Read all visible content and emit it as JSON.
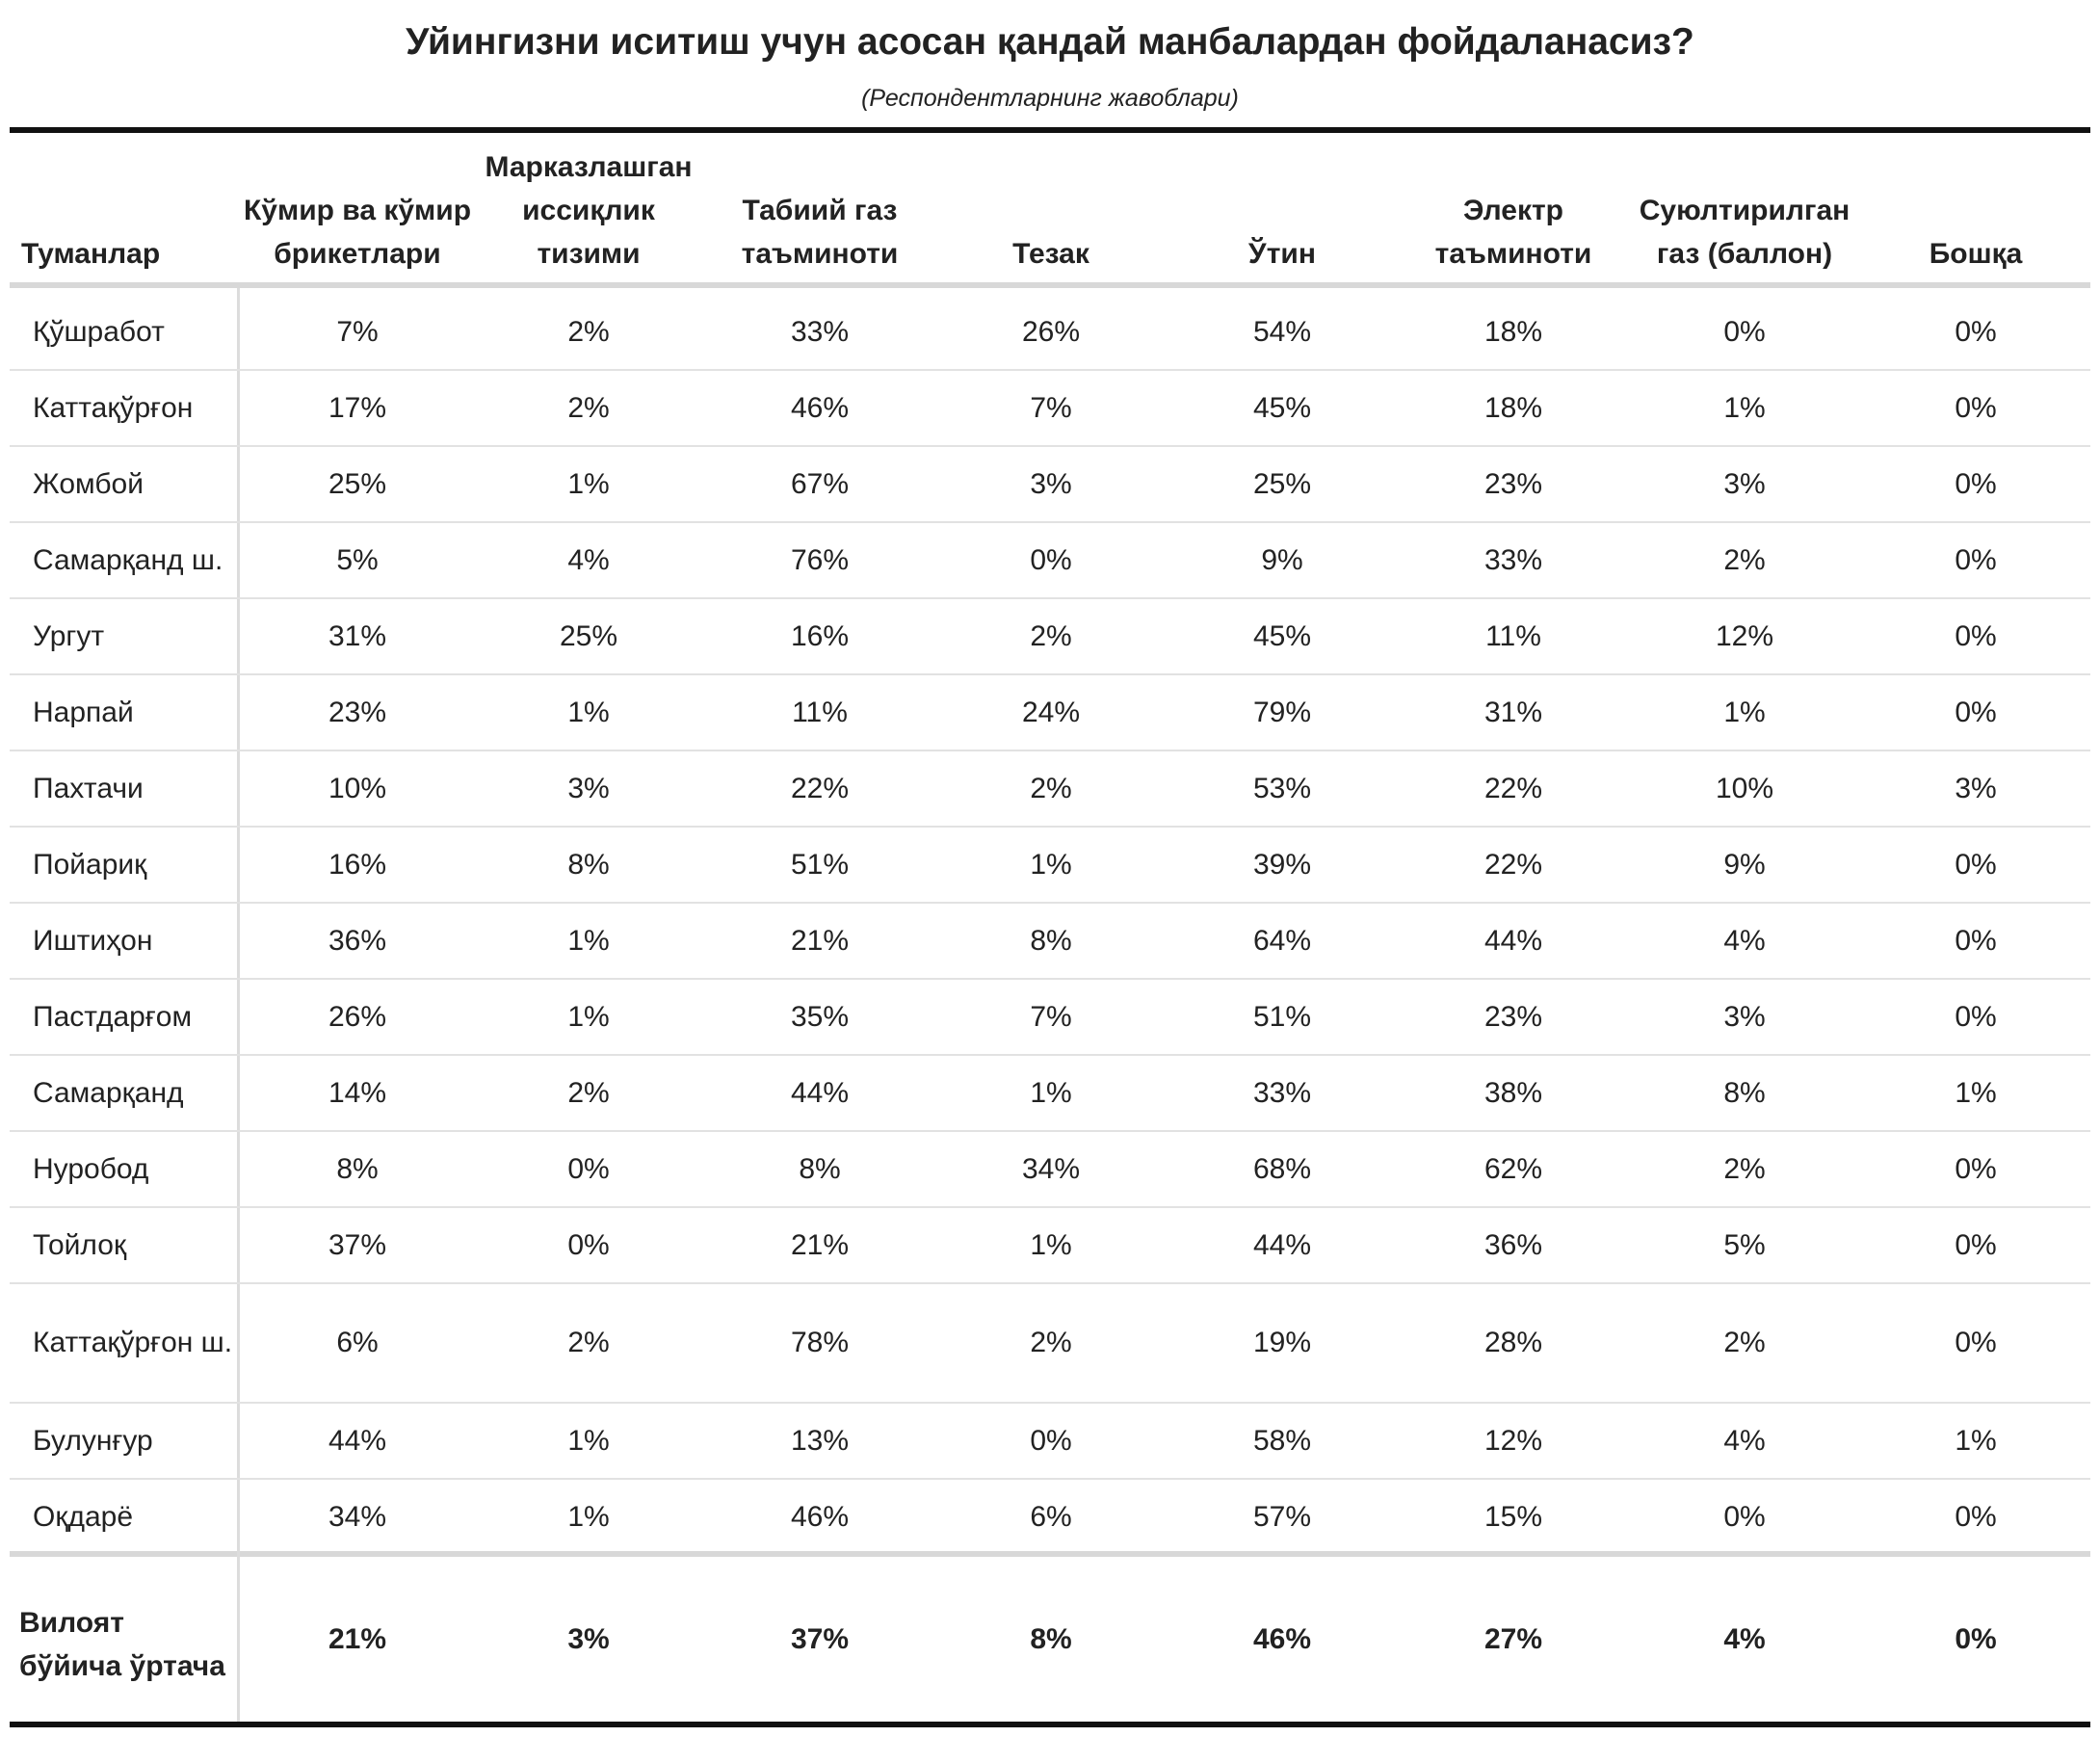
{
  "title": "Уйингизни иситиш учун асосан қандай манбалардан фойдаланасиз?",
  "subtitle": "(Респондентларнинг жавоблари)",
  "chart_data": {
    "type": "table",
    "row_header": "Туманлар",
    "columns": [
      "Кўмир ва кўмир брикетлари",
      "Марказлашган иссиқлик тизими",
      "Табиий газ таъминоти",
      "Тезак",
      "Ўтин",
      "Электр таъминоти",
      "Суюлтирилган газ (баллон)",
      "Бошқа"
    ],
    "rows": [
      {
        "label": "Қўшработ",
        "values": [
          "7%",
          "2%",
          "33%",
          "26%",
          "54%",
          "18%",
          "0%",
          "0%"
        ]
      },
      {
        "label": "Каттақўрғон",
        "values": [
          "17%",
          "2%",
          "46%",
          "7%",
          "45%",
          "18%",
          "1%",
          "0%"
        ]
      },
      {
        "label": "Жомбой",
        "values": [
          "25%",
          "1%",
          "67%",
          "3%",
          "25%",
          "23%",
          "3%",
          "0%"
        ]
      },
      {
        "label": "Самарқанд ш.",
        "values": [
          "5%",
          "4%",
          "76%",
          "0%",
          "9%",
          "33%",
          "2%",
          "0%"
        ]
      },
      {
        "label": "Ургут",
        "values": [
          "31%",
          "25%",
          "16%",
          "2%",
          "45%",
          "11%",
          "12%",
          "0%"
        ]
      },
      {
        "label": "Нарпай",
        "values": [
          "23%",
          "1%",
          "11%",
          "24%",
          "79%",
          "31%",
          "1%",
          "0%"
        ]
      },
      {
        "label": "Пахтачи",
        "values": [
          "10%",
          "3%",
          "22%",
          "2%",
          "53%",
          "22%",
          "10%",
          "3%"
        ]
      },
      {
        "label": "Пойариқ",
        "values": [
          "16%",
          "8%",
          "51%",
          "1%",
          "39%",
          "22%",
          "9%",
          "0%"
        ]
      },
      {
        "label": "Иштиҳон",
        "values": [
          "36%",
          "1%",
          "21%",
          "8%",
          "64%",
          "44%",
          "4%",
          "0%"
        ]
      },
      {
        "label": "Пастдарғом",
        "values": [
          "26%",
          "1%",
          "35%",
          "7%",
          "51%",
          "23%",
          "3%",
          "0%"
        ]
      },
      {
        "label": "Самарқанд",
        "values": [
          "14%",
          "2%",
          "44%",
          "1%",
          "33%",
          "38%",
          "8%",
          "1%"
        ]
      },
      {
        "label": "Нуробод",
        "values": [
          "8%",
          "0%",
          "8%",
          "34%",
          "68%",
          "62%",
          "2%",
          "0%"
        ]
      },
      {
        "label": "Тойлоқ",
        "values": [
          "37%",
          "0%",
          "21%",
          "1%",
          "44%",
          "36%",
          "5%",
          "0%"
        ]
      },
      {
        "label": "Каттақўрғон ш.",
        "values": [
          "6%",
          "2%",
          "78%",
          "2%",
          "19%",
          "28%",
          "2%",
          "0%"
        ]
      },
      {
        "label": "Булунғур",
        "values": [
          "44%",
          "1%",
          "13%",
          "0%",
          "58%",
          "12%",
          "4%",
          "1%"
        ]
      },
      {
        "label": "Оқдарё",
        "values": [
          "34%",
          "1%",
          "46%",
          "6%",
          "57%",
          "15%",
          "0%",
          "0%"
        ]
      }
    ],
    "total": {
      "label": "Вилоят бўйича ўртача",
      "values": [
        "21%",
        "3%",
        "37%",
        "8%",
        "46%",
        "27%",
        "4%",
        "0%"
      ]
    }
  }
}
